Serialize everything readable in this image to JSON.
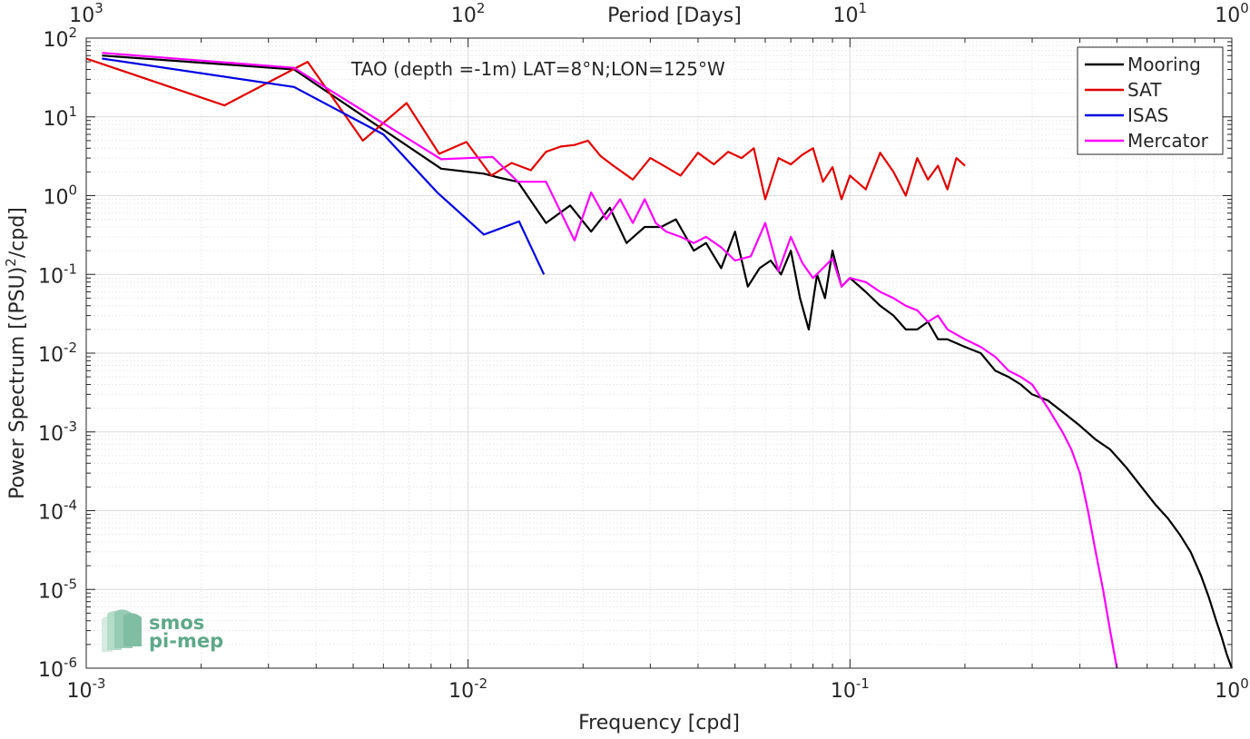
{
  "chart_data": {
    "type": "line",
    "title": "",
    "annotation": "TAO (depth =-1m) LAT=8°N;LON=125°W",
    "xlabel": "Frequency [cpd]",
    "ylabel": "Power Spectrum [(PSU)²/cpd]",
    "ylabel_parts": [
      "Power Spectrum [(PSU)",
      "2",
      "/cpd]"
    ],
    "top_xlabel": "Period [Days]",
    "xscale": "log",
    "yscale": "log",
    "xlim": [
      0.001,
      1
    ],
    "ylim": [
      1e-06,
      100
    ],
    "grid": true,
    "legend_location": "top-right",
    "x_ticks": [
      {
        "value": 0.001,
        "base": "10",
        "exp": "-3"
      },
      {
        "value": 0.01,
        "base": "10",
        "exp": "-2"
      },
      {
        "value": 0.1,
        "base": "10",
        "exp": "-1"
      },
      {
        "value": 1,
        "base": "10",
        "exp": "0"
      }
    ],
    "top_ticks": [
      {
        "value": 0.001,
        "base": "10",
        "exp": "3"
      },
      {
        "value": 0.01,
        "base": "10",
        "exp": "2"
      },
      {
        "value": 0.1,
        "base": "10",
        "exp": "1"
      },
      {
        "value": 1,
        "base": "10",
        "exp": "0"
      }
    ],
    "y_ticks": [
      {
        "value": 100,
        "base": "10",
        "exp": "2"
      },
      {
        "value": 10,
        "base": "10",
        "exp": "1"
      },
      {
        "value": 1,
        "base": "10",
        "exp": "0"
      },
      {
        "value": 0.1,
        "base": "10",
        "exp": "-1"
      },
      {
        "value": 0.01,
        "base": "10",
        "exp": "-2"
      },
      {
        "value": 0.001,
        "base": "10",
        "exp": "-3"
      },
      {
        "value": 0.0001,
        "base": "10",
        "exp": "-4"
      },
      {
        "value": 1e-05,
        "base": "10",
        "exp": "-5"
      },
      {
        "value": 1e-06,
        "base": "10",
        "exp": "-6"
      }
    ],
    "series": [
      {
        "name": "Mooring",
        "color": "#000000",
        "x": [
          0.0011,
          0.0035,
          0.0085,
          0.011,
          0.012,
          0.0135,
          0.016,
          0.0185,
          0.021,
          0.0235,
          0.026,
          0.029,
          0.032,
          0.035,
          0.039,
          0.042,
          0.046,
          0.05,
          0.054,
          0.058,
          0.062,
          0.066,
          0.07,
          0.074,
          0.078,
          0.082,
          0.086,
          0.09,
          0.095,
          0.1,
          0.11,
          0.12,
          0.13,
          0.14,
          0.15,
          0.16,
          0.17,
          0.18,
          0.2,
          0.22,
          0.24,
          0.26,
          0.28,
          0.3,
          0.33,
          0.36,
          0.4,
          0.44,
          0.48,
          0.53,
          0.58,
          0.63,
          0.68,
          0.73,
          0.78,
          0.83,
          0.87,
          0.91,
          0.94,
          0.97,
          1.0
        ],
        "y": [
          60,
          40,
          2.2,
          1.9,
          1.7,
          1.5,
          0.45,
          0.75,
          0.35,
          0.7,
          0.25,
          0.4,
          0.4,
          0.5,
          0.2,
          0.25,
          0.12,
          0.35,
          0.07,
          0.12,
          0.15,
          0.1,
          0.2,
          0.05,
          0.02,
          0.1,
          0.05,
          0.2,
          0.07,
          0.09,
          0.06,
          0.04,
          0.03,
          0.02,
          0.02,
          0.025,
          0.015,
          0.015,
          0.012,
          0.01,
          0.006,
          0.005,
          0.004,
          0.003,
          0.0025,
          0.0018,
          0.0012,
          0.0008,
          0.0006,
          0.00035,
          0.0002,
          0.00012,
          8e-05,
          5e-05,
          3e-05,
          1.5e-05,
          8e-06,
          4e-06,
          2.5e-06,
          1.5e-06,
          1e-06
        ]
      },
      {
        "name": "SAT",
        "color": "#e00000",
        "x": [
          0.001,
          0.0023,
          0.0038,
          0.0053,
          0.0069,
          0.0084,
          0.0099,
          0.0115,
          0.013,
          0.0146,
          0.016,
          0.0175,
          0.019,
          0.0206,
          0.0222,
          0.024,
          0.027,
          0.03,
          0.033,
          0.036,
          0.04,
          0.044,
          0.048,
          0.052,
          0.056,
          0.06,
          0.065,
          0.07,
          0.075,
          0.08,
          0.085,
          0.09,
          0.095,
          0.1,
          0.11,
          0.12,
          0.13,
          0.14,
          0.15,
          0.16,
          0.17,
          0.18,
          0.19,
          0.2
        ],
        "y": [
          55,
          14,
          50,
          5,
          15,
          3.4,
          4.8,
          1.8,
          2.6,
          2.1,
          3.6,
          4.2,
          4.4,
          5.0,
          3.2,
          2.4,
          1.6,
          3.0,
          2.3,
          1.8,
          3.5,
          2.5,
          3.6,
          3.0,
          4.0,
          0.9,
          3.0,
          2.5,
          3.3,
          4.0,
          1.5,
          2.3,
          0.9,
          1.8,
          1.2,
          3.5,
          2.0,
          1.0,
          3.0,
          1.6,
          2.4,
          1.2,
          3.0,
          2.4
        ]
      },
      {
        "name": "ISAS",
        "color": "#0000e0",
        "x": [
          0.0011,
          0.0035,
          0.006,
          0.0083,
          0.011,
          0.0136,
          0.0158
        ],
        "y": [
          55,
          24,
          6,
          1.1,
          0.32,
          0.47,
          0.1
        ]
      },
      {
        "name": "Mercator",
        "color": "#ff00ff",
        "x": [
          0.0011,
          0.0035,
          0.0085,
          0.0116,
          0.0135,
          0.016,
          0.019,
          0.021,
          0.023,
          0.025,
          0.027,
          0.029,
          0.031,
          0.033,
          0.036,
          0.039,
          0.042,
          0.046,
          0.05,
          0.055,
          0.06,
          0.065,
          0.07,
          0.075,
          0.08,
          0.085,
          0.09,
          0.095,
          0.1,
          0.11,
          0.12,
          0.13,
          0.14,
          0.15,
          0.16,
          0.17,
          0.18,
          0.2,
          0.22,
          0.24,
          0.26,
          0.28,
          0.3,
          0.33,
          0.36,
          0.38,
          0.4,
          0.42,
          0.44,
          0.46,
          0.48,
          0.5
        ],
        "y": [
          65,
          42,
          2.9,
          3.1,
          1.5,
          1.5,
          0.27,
          1.1,
          0.5,
          0.9,
          0.45,
          0.9,
          0.45,
          0.35,
          0.3,
          0.25,
          0.3,
          0.22,
          0.15,
          0.17,
          0.45,
          0.11,
          0.3,
          0.14,
          0.09,
          0.12,
          0.16,
          0.07,
          0.09,
          0.08,
          0.06,
          0.05,
          0.04,
          0.035,
          0.025,
          0.03,
          0.02,
          0.015,
          0.012,
          0.009,
          0.006,
          0.005,
          0.004,
          0.002,
          0.001,
          0.0006,
          0.0003,
          0.0001,
          3e-05,
          1e-05,
          3e-06,
          1e-06
        ]
      }
    ]
  },
  "logo": {
    "line1": "smos",
    "line2": "pi-mep",
    "color": "#5fa88a"
  }
}
